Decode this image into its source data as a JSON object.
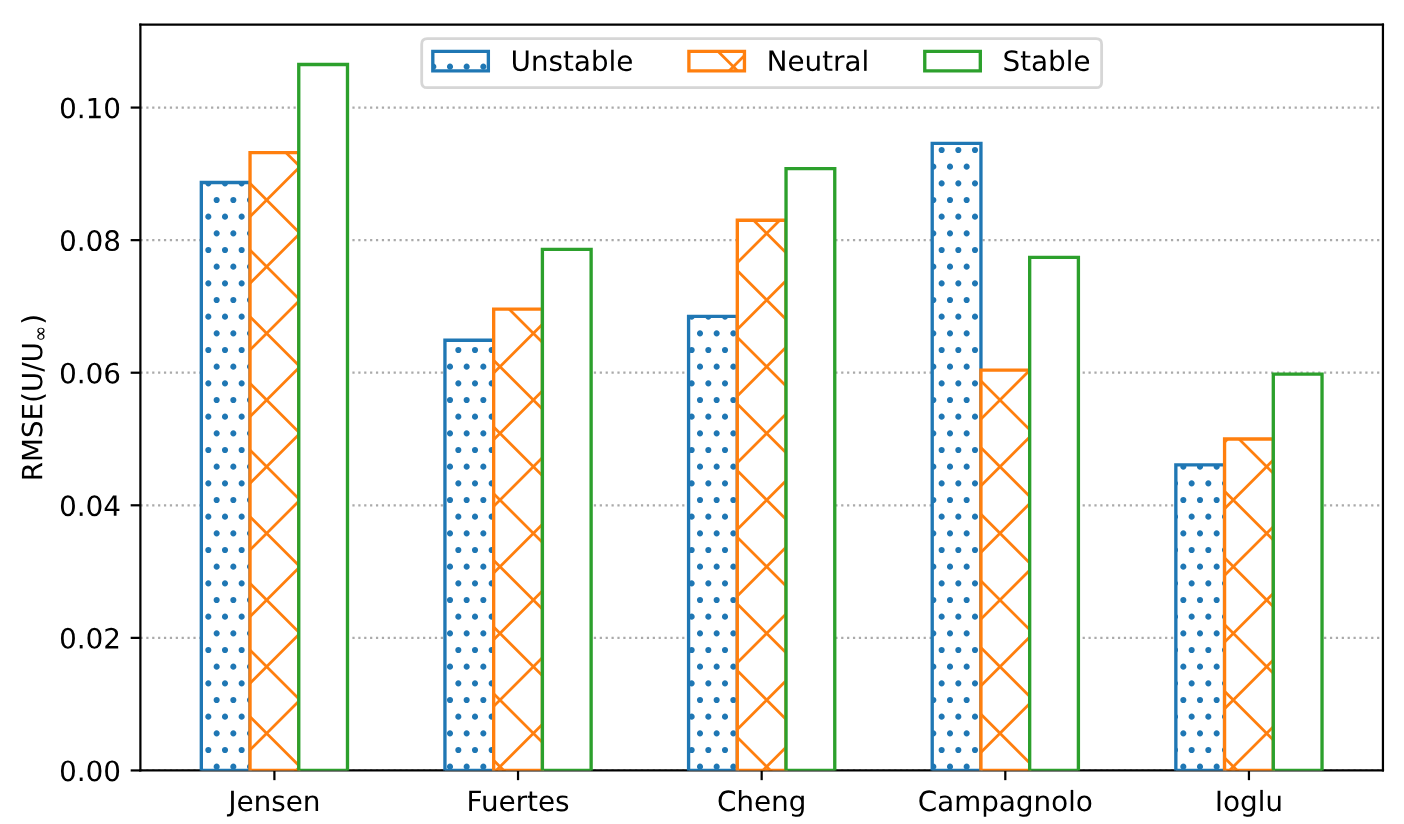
{
  "chart_data": {
    "type": "bar",
    "ylabel": "RMSE(U/U$_{∞}$)",
    "categories": [
      "Jensen",
      "Fuertes",
      "Cheng",
      "Campagnolo",
      "Ioglu"
    ],
    "series": [
      {
        "name": "Unstable",
        "color": "#1f77b4",
        "values": [
          0.0887,
          0.0649,
          0.0685,
          0.0946,
          0.0461
        ]
      },
      {
        "name": "Neutral",
        "color": "#ff7f0e",
        "values": [
          0.0932,
          0.0696,
          0.083,
          0.0604,
          0.05
        ]
      },
      {
        "name": "Stable",
        "color": "#2ca02c",
        "values": [
          0.1065,
          0.0786,
          0.0908,
          0.0774,
          0.0598
        ]
      }
    ],
    "ylim": [
      0,
      0.1125
    ],
    "yticks": [
      {
        "value": 0,
        "label": "0.00"
      },
      {
        "value": 0.02,
        "label": "0.02"
      },
      {
        "value": 0.04,
        "label": "0.04"
      },
      {
        "value": 0.06,
        "label": "0.06"
      },
      {
        "value": 0.08,
        "label": "0.08"
      },
      {
        "value": 0.1,
        "label": "0.10"
      }
    ],
    "grid": "y",
    "legend": "top"
  }
}
